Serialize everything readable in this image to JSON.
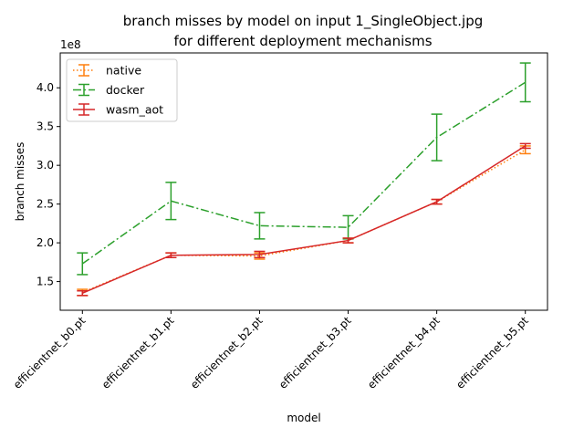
{
  "chart_data": {
    "type": "line",
    "title_line1": "branch misses by model on input 1_SingleObject.jpg",
    "title_line2": "for different deployment mechanisms",
    "xlabel": "model",
    "ylabel": "branch misses",
    "y_offset_label": "1e8",
    "y_scale": 100000000,
    "ylim": [
      1.13,
      4.45
    ],
    "yticks": [
      1.5,
      2.0,
      2.5,
      3.0,
      3.5,
      4.0
    ],
    "ytick_labels": [
      "1.5",
      "2.0",
      "2.5",
      "3.0",
      "3.5",
      "4.0"
    ],
    "categories": [
      "efficientnet_b0.pt",
      "efficientnet_b1.pt",
      "efficientnet_b2.pt",
      "efficientnet_b3.pt",
      "efficientnet_b4.pt",
      "efficientnet_b5.pt"
    ],
    "legend_position": "upper-left",
    "series": [
      {
        "name": "native",
        "color": "#ff7f0e",
        "dash": "dotted",
        "values": [
          1.36,
          1.84,
          1.83,
          2.03,
          2.53,
          3.2
        ],
        "errors": [
          0.04,
          0.03,
          0.04,
          0.03,
          0.03,
          0.05
        ]
      },
      {
        "name": "docker",
        "color": "#2ca02c",
        "dash": "dashdot",
        "values": [
          1.73,
          2.54,
          2.22,
          2.2,
          3.36,
          4.07
        ],
        "errors": [
          0.14,
          0.24,
          0.17,
          0.15,
          0.3,
          0.25
        ]
      },
      {
        "name": "wasm_aot",
        "color": "#d62728",
        "dash": "solid",
        "values": [
          1.35,
          1.84,
          1.85,
          2.03,
          2.53,
          3.25
        ],
        "errors": [
          0.03,
          0.03,
          0.04,
          0.03,
          0.03,
          0.03
        ]
      }
    ]
  }
}
